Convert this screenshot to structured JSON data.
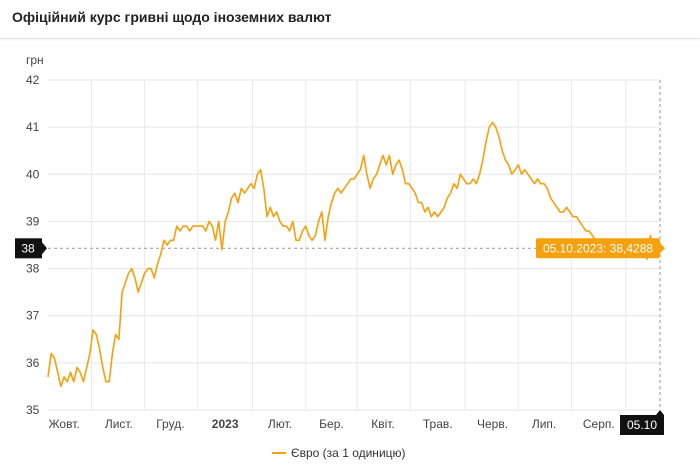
{
  "header": {
    "title": "Офіційний курс гривні щодо іноземних валют"
  },
  "legend": {
    "label": "Євро (за 1 одиницю)"
  },
  "chart_data": {
    "type": "line",
    "ylabel": "грн",
    "ylim": [
      35,
      42
    ],
    "yticks": [
      35,
      36,
      37,
      38,
      39,
      40,
      41,
      42
    ],
    "xlim": [
      0,
      95
    ],
    "x_tick_labels": [
      {
        "label": "Жовт.",
        "x": 2.5,
        "bold": false
      },
      {
        "label": "Лист.",
        "x": 11,
        "bold": false
      },
      {
        "label": "Груд.",
        "x": 19,
        "bold": false
      },
      {
        "label": "2023",
        "x": 27.5,
        "bold": true
      },
      {
        "label": "Лют.",
        "x": 36,
        "bold": false
      },
      {
        "label": "Бер.",
        "x": 44,
        "bold": false
      },
      {
        "label": "Квіт.",
        "x": 52,
        "bold": false
      },
      {
        "label": "Трав.",
        "x": 60.5,
        "bold": false
      },
      {
        "label": "Черв.",
        "x": 69,
        "bold": false
      },
      {
        "label": "Лип.",
        "x": 77,
        "bold": false
      },
      {
        "label": "Серп.",
        "x": 85.5,
        "bold": false
      }
    ],
    "y_marker": {
      "label": "38",
      "value": 38.43
    },
    "x_marker": {
      "label": "05.10",
      "x": 95
    },
    "tooltip": {
      "text": "05.10.2023: 38,4288"
    },
    "grid": true,
    "series": [
      {
        "name": "Євро (за 1 одиницю)",
        "color": "#f5a00d",
        "points": [
          [
            0,
            35.7
          ],
          [
            0.5,
            36.2
          ],
          [
            1,
            36.1
          ],
          [
            1.5,
            35.8
          ],
          [
            2,
            35.5
          ],
          [
            2.5,
            35.7
          ],
          [
            3,
            35.6
          ],
          [
            3.5,
            35.8
          ],
          [
            4,
            35.6
          ],
          [
            4.5,
            35.9
          ],
          [
            5,
            35.8
          ],
          [
            5.5,
            35.6
          ],
          [
            6,
            35.9
          ],
          [
            6.5,
            36.2
          ],
          [
            7,
            36.7
          ],
          [
            7.5,
            36.6
          ],
          [
            8,
            36.3
          ],
          [
            8.5,
            35.9
          ],
          [
            9,
            35.6
          ],
          [
            9.5,
            35.6
          ],
          [
            10,
            36.2
          ],
          [
            10.5,
            36.6
          ],
          [
            11,
            36.5
          ],
          [
            11.5,
            37.5
          ],
          [
            12,
            37.7
          ],
          [
            12.5,
            37.9
          ],
          [
            13,
            38.0
          ],
          [
            13.5,
            37.8
          ],
          [
            14,
            37.5
          ],
          [
            14.5,
            37.7
          ],
          [
            15,
            37.9
          ],
          [
            15.5,
            38.0
          ],
          [
            16,
            38.0
          ],
          [
            16.5,
            37.8
          ],
          [
            17,
            38.1
          ],
          [
            17.5,
            38.3
          ],
          [
            18,
            38.6
          ],
          [
            18.5,
            38.5
          ],
          [
            19,
            38.6
          ],
          [
            19.5,
            38.6
          ],
          [
            20,
            38.9
          ],
          [
            20.5,
            38.8
          ],
          [
            21,
            38.9
          ],
          [
            21.5,
            38.9
          ],
          [
            22,
            38.8
          ],
          [
            22.5,
            38.9
          ],
          [
            23,
            38.9
          ],
          [
            23.5,
            38.9
          ],
          [
            24,
            38.9
          ],
          [
            24.5,
            38.8
          ],
          [
            25,
            39.0
          ],
          [
            25.5,
            38.9
          ],
          [
            26,
            38.6
          ],
          [
            26.5,
            39.0
          ],
          [
            27,
            38.4
          ],
          [
            27.5,
            39.0
          ],
          [
            28,
            39.2
          ],
          [
            28.5,
            39.5
          ],
          [
            29,
            39.6
          ],
          [
            29.5,
            39.4
          ],
          [
            30,
            39.7
          ],
          [
            30.5,
            39.6
          ],
          [
            31,
            39.7
          ],
          [
            31.5,
            39.8
          ],
          [
            32,
            39.7
          ],
          [
            32.5,
            40.0
          ],
          [
            33,
            40.1
          ],
          [
            33.5,
            39.7
          ],
          [
            34,
            39.1
          ],
          [
            34.5,
            39.3
          ],
          [
            35,
            39.1
          ],
          [
            35.5,
            39.2
          ],
          [
            36,
            39.0
          ],
          [
            36.5,
            38.9
          ],
          [
            37,
            38.9
          ],
          [
            37.5,
            38.8
          ],
          [
            38,
            39.0
          ],
          [
            38.5,
            38.6
          ],
          [
            39,
            38.6
          ],
          [
            39.5,
            38.8
          ],
          [
            40,
            38.9
          ],
          [
            40.5,
            38.7
          ],
          [
            41,
            38.6
          ],
          [
            41.5,
            38.7
          ],
          [
            42,
            39.0
          ],
          [
            42.5,
            39.2
          ],
          [
            43,
            38.6
          ],
          [
            43.5,
            39.1
          ],
          [
            44,
            39.4
          ],
          [
            44.5,
            39.6
          ],
          [
            45,
            39.7
          ],
          [
            45.5,
            39.6
          ],
          [
            46,
            39.7
          ],
          [
            46.5,
            39.8
          ],
          [
            47,
            39.9
          ],
          [
            47.5,
            39.9
          ],
          [
            48,
            40.0
          ],
          [
            48.5,
            40.1
          ],
          [
            49,
            40.4
          ],
          [
            49.5,
            40.0
          ],
          [
            50,
            39.7
          ],
          [
            50.5,
            39.9
          ],
          [
            51,
            40.0
          ],
          [
            51.5,
            40.2
          ],
          [
            52,
            40.4
          ],
          [
            52.5,
            40.2
          ],
          [
            53,
            40.4
          ],
          [
            53.5,
            40.0
          ],
          [
            54,
            40.2
          ],
          [
            54.5,
            40.3
          ],
          [
            55,
            40.1
          ],
          [
            55.5,
            39.8
          ],
          [
            56,
            39.8
          ],
          [
            56.5,
            39.7
          ],
          [
            57,
            39.6
          ],
          [
            57.5,
            39.4
          ],
          [
            58,
            39.4
          ],
          [
            58.5,
            39.2
          ],
          [
            59,
            39.3
          ],
          [
            59.5,
            39.1
          ],
          [
            60,
            39.2
          ],
          [
            60.5,
            39.1
          ],
          [
            61,
            39.2
          ],
          [
            61.5,
            39.3
          ],
          [
            62,
            39.5
          ],
          [
            62.5,
            39.6
          ],
          [
            63,
            39.8
          ],
          [
            63.5,
            39.7
          ],
          [
            64,
            40.0
          ],
          [
            64.5,
            39.9
          ],
          [
            65,
            39.8
          ],
          [
            65.5,
            39.8
          ],
          [
            66,
            39.9
          ],
          [
            66.5,
            39.8
          ],
          [
            67,
            40.0
          ],
          [
            67.5,
            40.3
          ],
          [
            68,
            40.7
          ],
          [
            68.5,
            41.0
          ],
          [
            69,
            41.1
          ],
          [
            69.5,
            41.0
          ],
          [
            70,
            40.8
          ],
          [
            70.5,
            40.5
          ],
          [
            71,
            40.3
          ],
          [
            71.5,
            40.2
          ],
          [
            72,
            40.0
          ],
          [
            72.5,
            40.1
          ],
          [
            73,
            40.2
          ],
          [
            73.5,
            40.0
          ],
          [
            74,
            40.1
          ],
          [
            74.5,
            40.0
          ],
          [
            75,
            39.9
          ],
          [
            75.5,
            39.8
          ],
          [
            76,
            39.9
          ],
          [
            76.5,
            39.8
          ],
          [
            77,
            39.8
          ],
          [
            77.5,
            39.7
          ],
          [
            78,
            39.5
          ],
          [
            78.5,
            39.4
          ],
          [
            79,
            39.3
          ],
          [
            79.5,
            39.2
          ],
          [
            80,
            39.2
          ],
          [
            80.5,
            39.3
          ],
          [
            81,
            39.2
          ],
          [
            81.5,
            39.1
          ],
          [
            82,
            39.1
          ],
          [
            82.5,
            39.0
          ],
          [
            83,
            38.9
          ],
          [
            83.5,
            38.8
          ],
          [
            84,
            38.8
          ],
          [
            84.5,
            38.7
          ],
          [
            85,
            38.6
          ],
          [
            85.5,
            38.5
          ],
          [
            86,
            38.4
          ],
          [
            86.5,
            38.5
          ],
          [
            87,
            38.4
          ],
          [
            87.5,
            38.4
          ],
          [
            88,
            38.5
          ],
          [
            88.5,
            38.4
          ],
          [
            89,
            38.4
          ],
          [
            89.5,
            38.3
          ],
          [
            90,
            38.4
          ],
          [
            90.5,
            38.4
          ],
          [
            91,
            38.3
          ],
          [
            91.5,
            38.3
          ],
          [
            92,
            38.4
          ],
          [
            92.5,
            38.4
          ],
          [
            93,
            38.2
          ],
          [
            93.5,
            38.7
          ],
          [
            94,
            38.4
          ],
          [
            94.5,
            38.6
          ],
          [
            95,
            38.43
          ]
        ]
      }
    ]
  }
}
